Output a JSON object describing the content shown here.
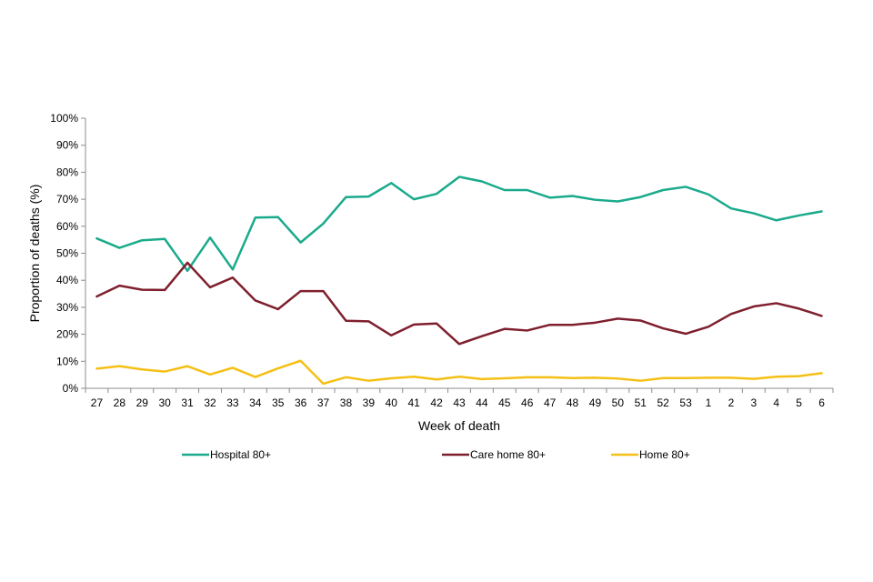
{
  "chart_data": {
    "type": "line",
    "title": "",
    "xlabel": "Week of death",
    "ylabel": "Proportion of deaths (%)",
    "ylim": [
      0,
      100
    ],
    "y_ticks": [
      0,
      10,
      20,
      30,
      40,
      50,
      60,
      70,
      80,
      90,
      100
    ],
    "y_tick_suffix": "%",
    "grid": false,
    "legend_position": "bottom",
    "categories": [
      "27",
      "28",
      "29",
      "30",
      "31",
      "32",
      "33",
      "34",
      "35",
      "36",
      "37",
      "38",
      "39",
      "40",
      "41",
      "42",
      "43",
      "44",
      "45",
      "46",
      "47",
      "48",
      "49",
      "50",
      "51",
      "52",
      "53",
      "1",
      "2",
      "3",
      "4",
      "5",
      "6"
    ],
    "series": [
      {
        "name": "Hospital 80+",
        "color": "#1aaa8c",
        "values": [
          55.5,
          52,
          54.8,
          55.3,
          43.5,
          55.8,
          44,
          63.2,
          63.4,
          54,
          61,
          70.8,
          71,
          76,
          70,
          72,
          78.3,
          76.6,
          73.4,
          73.4,
          70.6,
          71.2,
          69.8,
          69.2,
          70.8,
          73.4,
          74.6,
          71.8,
          66.6,
          64.8,
          62.2,
          64,
          65.5
        ]
      },
      {
        "name": "Care home 80+",
        "color": "#7f1f2e",
        "values": [
          34,
          38,
          36.5,
          36.4,
          46.5,
          37.4,
          41,
          32.5,
          29.3,
          36,
          36,
          25,
          24.8,
          19.6,
          23.6,
          24,
          16.4,
          19.3,
          22,
          21.4,
          23.5,
          23.5,
          24.3,
          25.8,
          25.1,
          22.2,
          20.2,
          22.8,
          27.5,
          30.3,
          31.5,
          29.5,
          26.8
        ]
      },
      {
        "name": "Home 80+",
        "color": "#f5c015",
        "values": [
          7.3,
          8.2,
          7,
          6.2,
          8.2,
          5.1,
          7.6,
          4.2,
          7.4,
          10.2,
          1.7,
          4.1,
          2.8,
          3.7,
          4.3,
          3.3,
          4.3,
          3.4,
          3.7,
          4.1,
          4.1,
          3.8,
          3.9,
          3.6,
          2.8,
          3.8,
          3.8,
          3.9,
          3.9,
          3.5,
          4.3,
          4.5,
          5.6
        ]
      }
    ]
  }
}
